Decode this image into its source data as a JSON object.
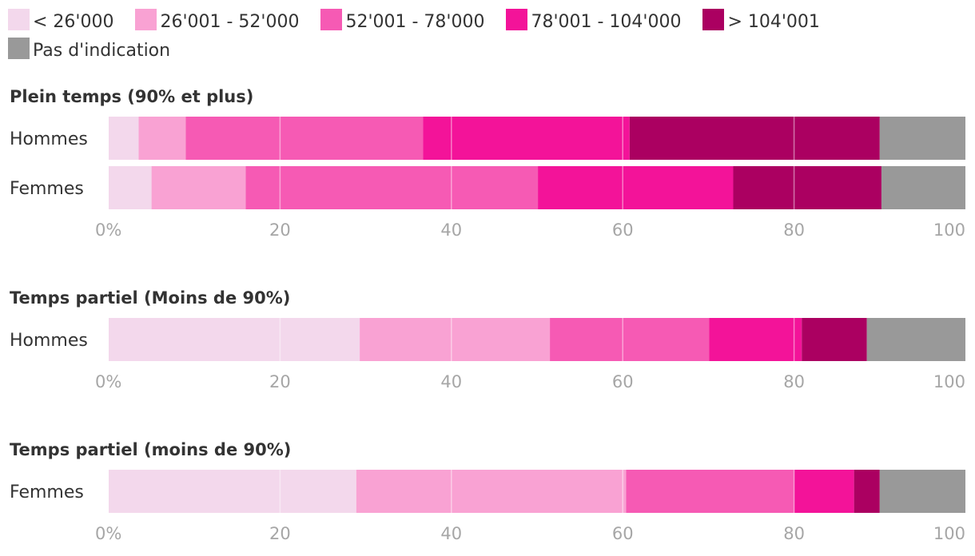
{
  "legend": [
    {
      "label": "< 26'000",
      "color": "#f3d8ec"
    },
    {
      "label": "26'001 - 52'000",
      "color": "#f9a2d3"
    },
    {
      "label": "52'001 - 78'000",
      "color": "#f65ab4"
    },
    {
      "label": "78'001 - 104'000",
      "color": "#f31399"
    },
    {
      "label": "> 104'001",
      "color": "#ab0061"
    },
    {
      "label": "Pas d'indication",
      "color": "#999999"
    }
  ],
  "chart_data": [
    {
      "type": "bar",
      "orientation": "horizontal",
      "stacked": true,
      "title": "Plein temps (90% et plus)",
      "categories": [
        "Hommes",
        "Femmes"
      ],
      "series": [
        {
          "name": "< 26'000",
          "values": [
            3.5,
            5
          ]
        },
        {
          "name": "26'001 - 52'000",
          "values": [
            5.5,
            11
          ]
        },
        {
          "name": "52'001 - 78'000",
          "values": [
            27.7,
            34.1
          ]
        },
        {
          "name": "78'001 - 104'000",
          "values": [
            24.1,
            22.8
          ]
        },
        {
          "name": "> 104'001",
          "values": [
            29.2,
            17.3
          ]
        },
        {
          "name": "Pas d'indication",
          "values": [
            10,
            9.8
          ]
        }
      ],
      "xlim": [
        0,
        100
      ],
      "x_ticks": [
        "0%",
        "20",
        "40",
        "60",
        "80",
        "100"
      ],
      "grid": true
    },
    {
      "type": "bar",
      "orientation": "horizontal",
      "stacked": true,
      "title": "Temps partiel (Moins de 90%)",
      "categories": [
        "Hommes"
      ],
      "series": [
        {
          "name": "< 26'000",
          "values": [
            29.3
          ]
        },
        {
          "name": "26'001 - 52'000",
          "values": [
            22.2
          ]
        },
        {
          "name": "52'001 - 78'000",
          "values": [
            18.6
          ]
        },
        {
          "name": "78'001 - 104'000",
          "values": [
            10.8
          ]
        },
        {
          "name": "> 104'001",
          "values": [
            7.6
          ]
        },
        {
          "name": "Pas d'indication",
          "values": [
            11.5
          ]
        }
      ],
      "xlim": [
        0,
        100
      ],
      "x_ticks": [
        "0%",
        "20",
        "40",
        "60",
        "80",
        "100"
      ],
      "grid": true
    },
    {
      "type": "bar",
      "orientation": "horizontal",
      "stacked": true,
      "title": "Temps partiel (moins de 90%)",
      "categories": [
        "Femmes"
      ],
      "series": [
        {
          "name": "< 26'000",
          "values": [
            28.9
          ]
        },
        {
          "name": "26'001 - 52'000",
          "values": [
            31.5
          ]
        },
        {
          "name": "52'001 - 78'000",
          "values": [
            19.6
          ]
        },
        {
          "name": "78'001 - 104'000",
          "values": [
            7
          ]
        },
        {
          "name": "> 104'001",
          "values": [
            3
          ]
        },
        {
          "name": "Pas d'indication",
          "values": [
            10
          ]
        }
      ],
      "xlim": [
        0,
        100
      ],
      "x_ticks": [
        "0%",
        "20",
        "40",
        "60",
        "80",
        "100"
      ],
      "grid": true
    }
  ]
}
